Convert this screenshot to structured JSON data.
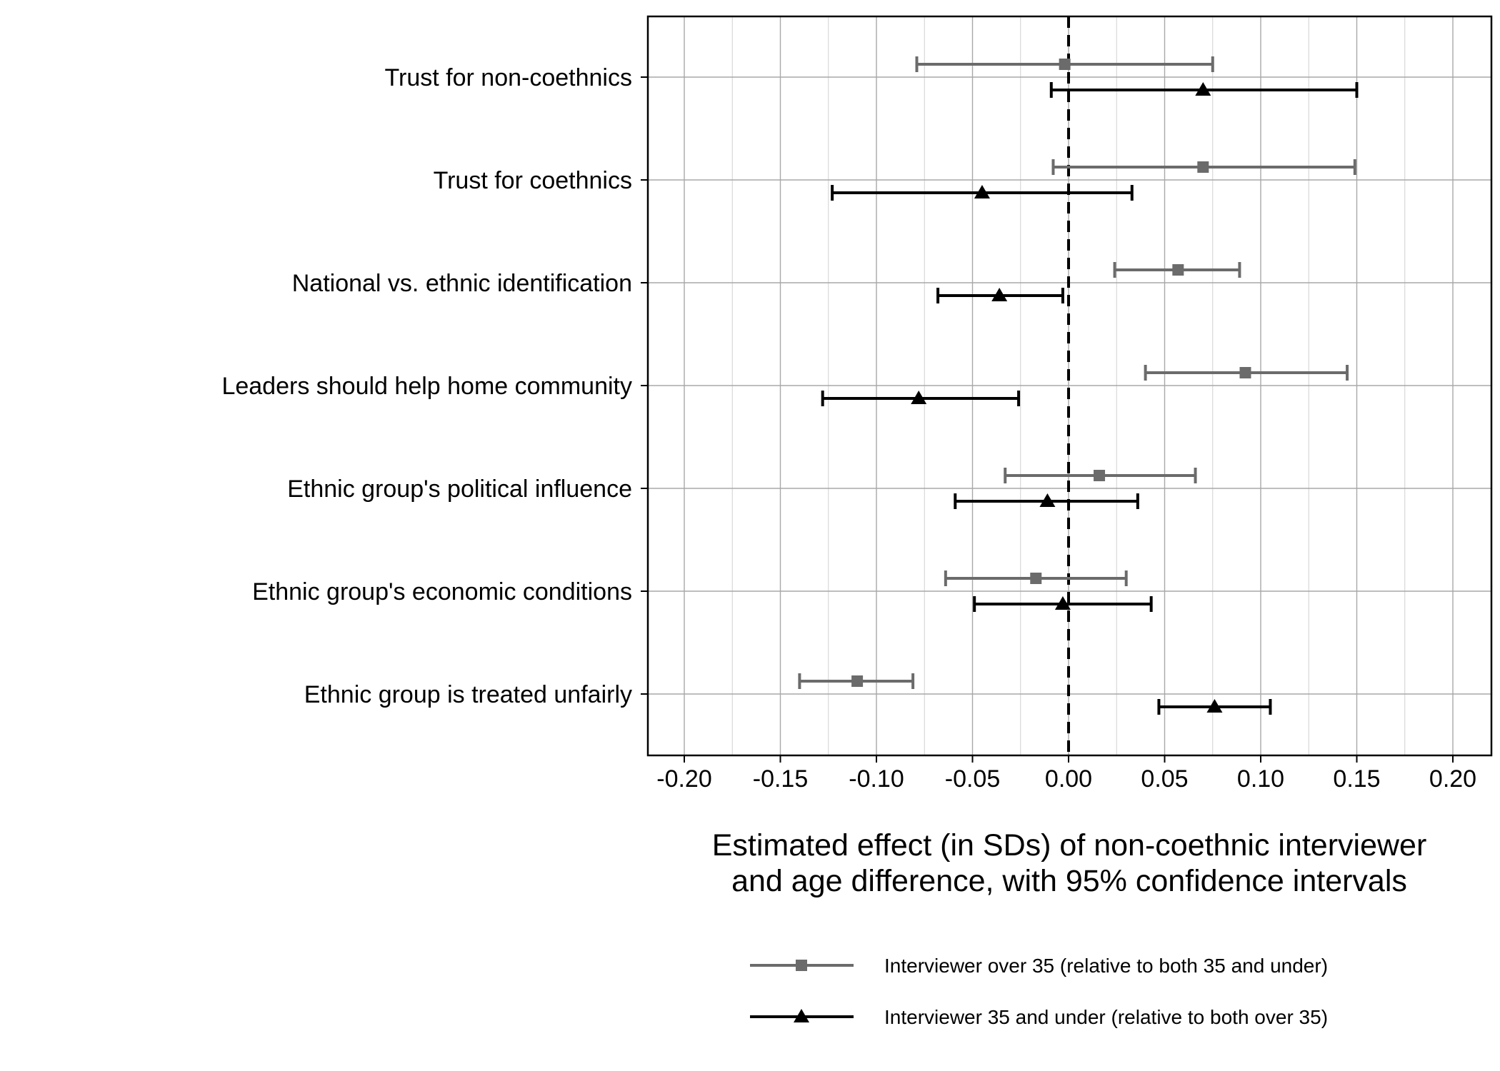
{
  "chart_data": {
    "type": "scatter",
    "subtype": "coefficient-plot-with-error-bars",
    "title": "",
    "xlabel_lines": [
      "Estimated effect (in SDs) of non-coethnic interviewer",
      "and age difference, with 95% confidence intervals"
    ],
    "ylabel": "",
    "xlim": [
      -0.22,
      0.22
    ],
    "xticks": [
      -0.2,
      -0.15,
      -0.1,
      -0.05,
      0.0,
      0.05,
      0.1,
      0.15,
      0.2
    ],
    "xtick_labels": [
      "-0.20",
      "-0.15",
      "-0.10",
      "-0.05",
      "0.00",
      "0.05",
      "0.10",
      "0.15",
      "0.20"
    ],
    "reference_line": 0.0,
    "grid": true,
    "legend_position": "bottom",
    "categories": [
      "Trust for non-coethnics",
      "Trust for coethnics",
      "National vs. ethnic identification",
      "Leaders should help home community",
      "Ethnic group's political influence",
      "Ethnic group's economic conditions",
      "Ethnic group is treated unfairly"
    ],
    "series": [
      {
        "name": "Interviewer over 35 (relative to both 35 and under)",
        "color": "#6b6b6b",
        "marker": "square",
        "estimates": [
          -0.002,
          0.07,
          0.057,
          0.092,
          0.016,
          -0.017,
          -0.11
        ],
        "lower": [
          -0.079,
          -0.008,
          0.024,
          0.04,
          -0.033,
          -0.064,
          -0.14
        ],
        "upper": [
          0.075,
          0.149,
          0.089,
          0.145,
          0.066,
          0.03,
          -0.081
        ]
      },
      {
        "name": "Interviewer 35 and under (relative to both over 35)",
        "color": "#000000",
        "marker": "triangle",
        "estimates": [
          0.07,
          -0.045,
          -0.036,
          -0.078,
          -0.011,
          -0.003,
          0.076
        ],
        "lower": [
          -0.009,
          -0.123,
          -0.068,
          -0.128,
          -0.059,
          -0.049,
          0.047
        ],
        "upper": [
          0.15,
          0.033,
          -0.003,
          -0.026,
          0.036,
          0.043,
          0.105
        ]
      }
    ]
  }
}
